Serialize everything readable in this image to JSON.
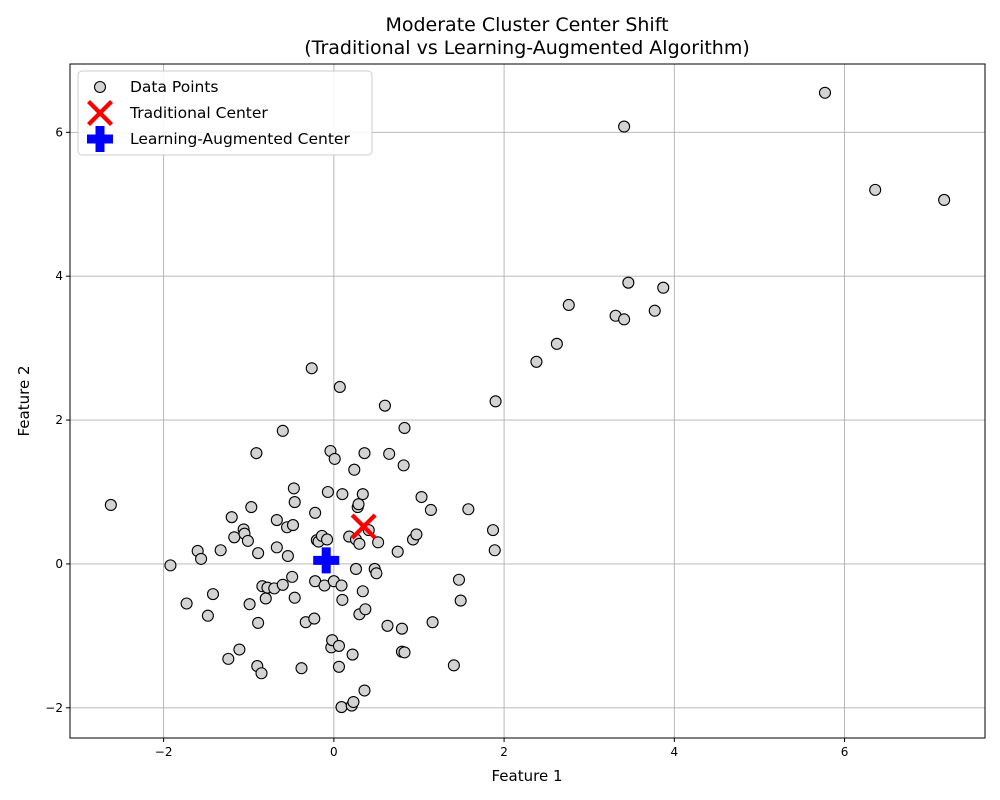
{
  "chart_data": {
    "type": "scatter",
    "title": "Moderate Cluster Center Shift",
    "subtitle": "(Traditional vs Learning-Augmented Algorithm)",
    "xlabel": "Feature 1",
    "ylabel": "Feature 2",
    "xlim": [
      -3.1,
      7.65
    ],
    "ylim": [
      -2.42,
      6.95
    ],
    "xticks": [
      -2,
      0,
      2,
      4,
      6
    ],
    "yticks": [
      -2,
      0,
      2,
      4,
      6
    ],
    "grid": true,
    "legend_position": "top-left",
    "series": [
      {
        "name": "Data Points",
        "marker": "circle",
        "color": "#d3d3d3",
        "edgecolor": "#000000",
        "points": [
          [
            -2.62,
            0.82
          ],
          [
            -1.92,
            -0.02
          ],
          [
            -1.73,
            -0.55
          ],
          [
            -1.6,
            0.18
          ],
          [
            -1.56,
            0.07
          ],
          [
            -1.48,
            -0.72
          ],
          [
            -1.42,
            -0.42
          ],
          [
            -1.33,
            0.19
          ],
          [
            -1.2,
            0.65
          ],
          [
            -1.17,
            0.37
          ],
          [
            -1.24,
            -1.32
          ],
          [
            -1.11,
            -1.19
          ],
          [
            -1.06,
            0.48
          ],
          [
            -1.05,
            0.42
          ],
          [
            -1.01,
            0.32
          ],
          [
            -0.99,
            -0.56
          ],
          [
            -0.97,
            0.79
          ],
          [
            -0.91,
            1.54
          ],
          [
            -0.89,
            0.15
          ],
          [
            -0.89,
            -0.82
          ],
          [
            -0.9,
            -1.42
          ],
          [
            -0.85,
            -1.52
          ],
          [
            -0.84,
            -0.31
          ],
          [
            -0.8,
            -0.48
          ],
          [
            -0.78,
            -0.33
          ],
          [
            -0.7,
            -0.34
          ],
          [
            -0.67,
            0.61
          ],
          [
            -0.67,
            0.23
          ],
          [
            -0.6,
            -0.29
          ],
          [
            -0.6,
            1.85
          ],
          [
            -0.55,
            0.51
          ],
          [
            -0.54,
            0.11
          ],
          [
            -0.49,
            -0.18
          ],
          [
            -0.48,
            0.54
          ],
          [
            -0.47,
            1.05
          ],
          [
            -0.46,
            0.86
          ],
          [
            -0.46,
            -0.47
          ],
          [
            -0.38,
            -1.45
          ],
          [
            -0.33,
            -0.81
          ],
          [
            -0.26,
            2.72
          ],
          [
            -0.23,
            -0.76
          ],
          [
            -0.22,
            0.71
          ],
          [
            -0.22,
            -0.24
          ],
          [
            -0.2,
            0.33
          ],
          [
            -0.18,
            0.31
          ],
          [
            -0.14,
            0.39
          ],
          [
            -0.11,
            -0.3
          ],
          [
            -0.08,
            0.34
          ],
          [
            -0.07,
            1.0
          ],
          [
            -0.04,
            1.57
          ],
          [
            -0.03,
            -1.16
          ],
          [
            -0.02,
            -1.06
          ],
          [
            0.0,
            -0.24
          ],
          [
            0.01,
            1.46
          ],
          [
            0.06,
            -1.14
          ],
          [
            0.07,
            2.46
          ],
          [
            0.06,
            -1.43
          ],
          [
            0.09,
            -0.3
          ],
          [
            0.09,
            -1.99
          ],
          [
            0.1,
            0.97
          ],
          [
            0.1,
            -0.5
          ],
          [
            0.18,
            0.38
          ],
          [
            0.21,
            -1.97
          ],
          [
            0.22,
            -1.26
          ],
          [
            0.23,
            -1.92
          ],
          [
            0.24,
            1.31
          ],
          [
            0.26,
            -0.07
          ],
          [
            0.26,
            0.34
          ],
          [
            0.28,
            0.79
          ],
          [
            0.29,
            0.83
          ],
          [
            0.3,
            0.28
          ],
          [
            0.3,
            -0.7
          ],
          [
            0.34,
            0.97
          ],
          [
            0.34,
            -0.38
          ],
          [
            0.36,
            -1.76
          ],
          [
            0.36,
            1.54
          ],
          [
            0.37,
            -0.63
          ],
          [
            0.41,
            0.47
          ],
          [
            0.48,
            -0.07
          ],
          [
            0.5,
            -0.13
          ],
          [
            0.52,
            0.3
          ],
          [
            0.6,
            2.2
          ],
          [
            0.63,
            -0.86
          ],
          [
            0.65,
            1.53
          ],
          [
            0.75,
            0.17
          ],
          [
            0.8,
            -0.9
          ],
          [
            0.82,
            1.37
          ],
          [
            0.8,
            -1.22
          ],
          [
            0.83,
            1.89
          ],
          [
            0.83,
            -1.23
          ],
          [
            0.93,
            0.34
          ],
          [
            0.97,
            0.41
          ],
          [
            1.03,
            0.93
          ],
          [
            1.14,
            0.75
          ],
          [
            1.16,
            -0.81
          ],
          [
            1.41,
            -1.41
          ],
          [
            1.47,
            -0.22
          ],
          [
            1.49,
            -0.51
          ],
          [
            1.58,
            0.76
          ],
          [
            1.87,
            0.47
          ],
          [
            1.89,
            0.19
          ],
          [
            1.9,
            2.26
          ],
          [
            2.38,
            2.81
          ],
          [
            2.62,
            3.06
          ],
          [
            2.76,
            3.6
          ],
          [
            3.31,
            3.45
          ],
          [
            3.41,
            3.4
          ],
          [
            3.41,
            6.08
          ],
          [
            3.46,
            3.91
          ],
          [
            3.77,
            3.52
          ],
          [
            3.87,
            3.84
          ],
          [
            5.77,
            6.55
          ],
          [
            6.36,
            5.2
          ],
          [
            7.17,
            5.06
          ]
        ]
      },
      {
        "name": "Traditional Center",
        "marker": "x",
        "color": "#ff0000",
        "points": [
          [
            0.35,
            0.52
          ]
        ]
      },
      {
        "name": "Learning-Augmented Center",
        "marker": "plus",
        "color": "#0000ff",
        "points": [
          [
            -0.09,
            0.05
          ]
        ]
      }
    ]
  }
}
